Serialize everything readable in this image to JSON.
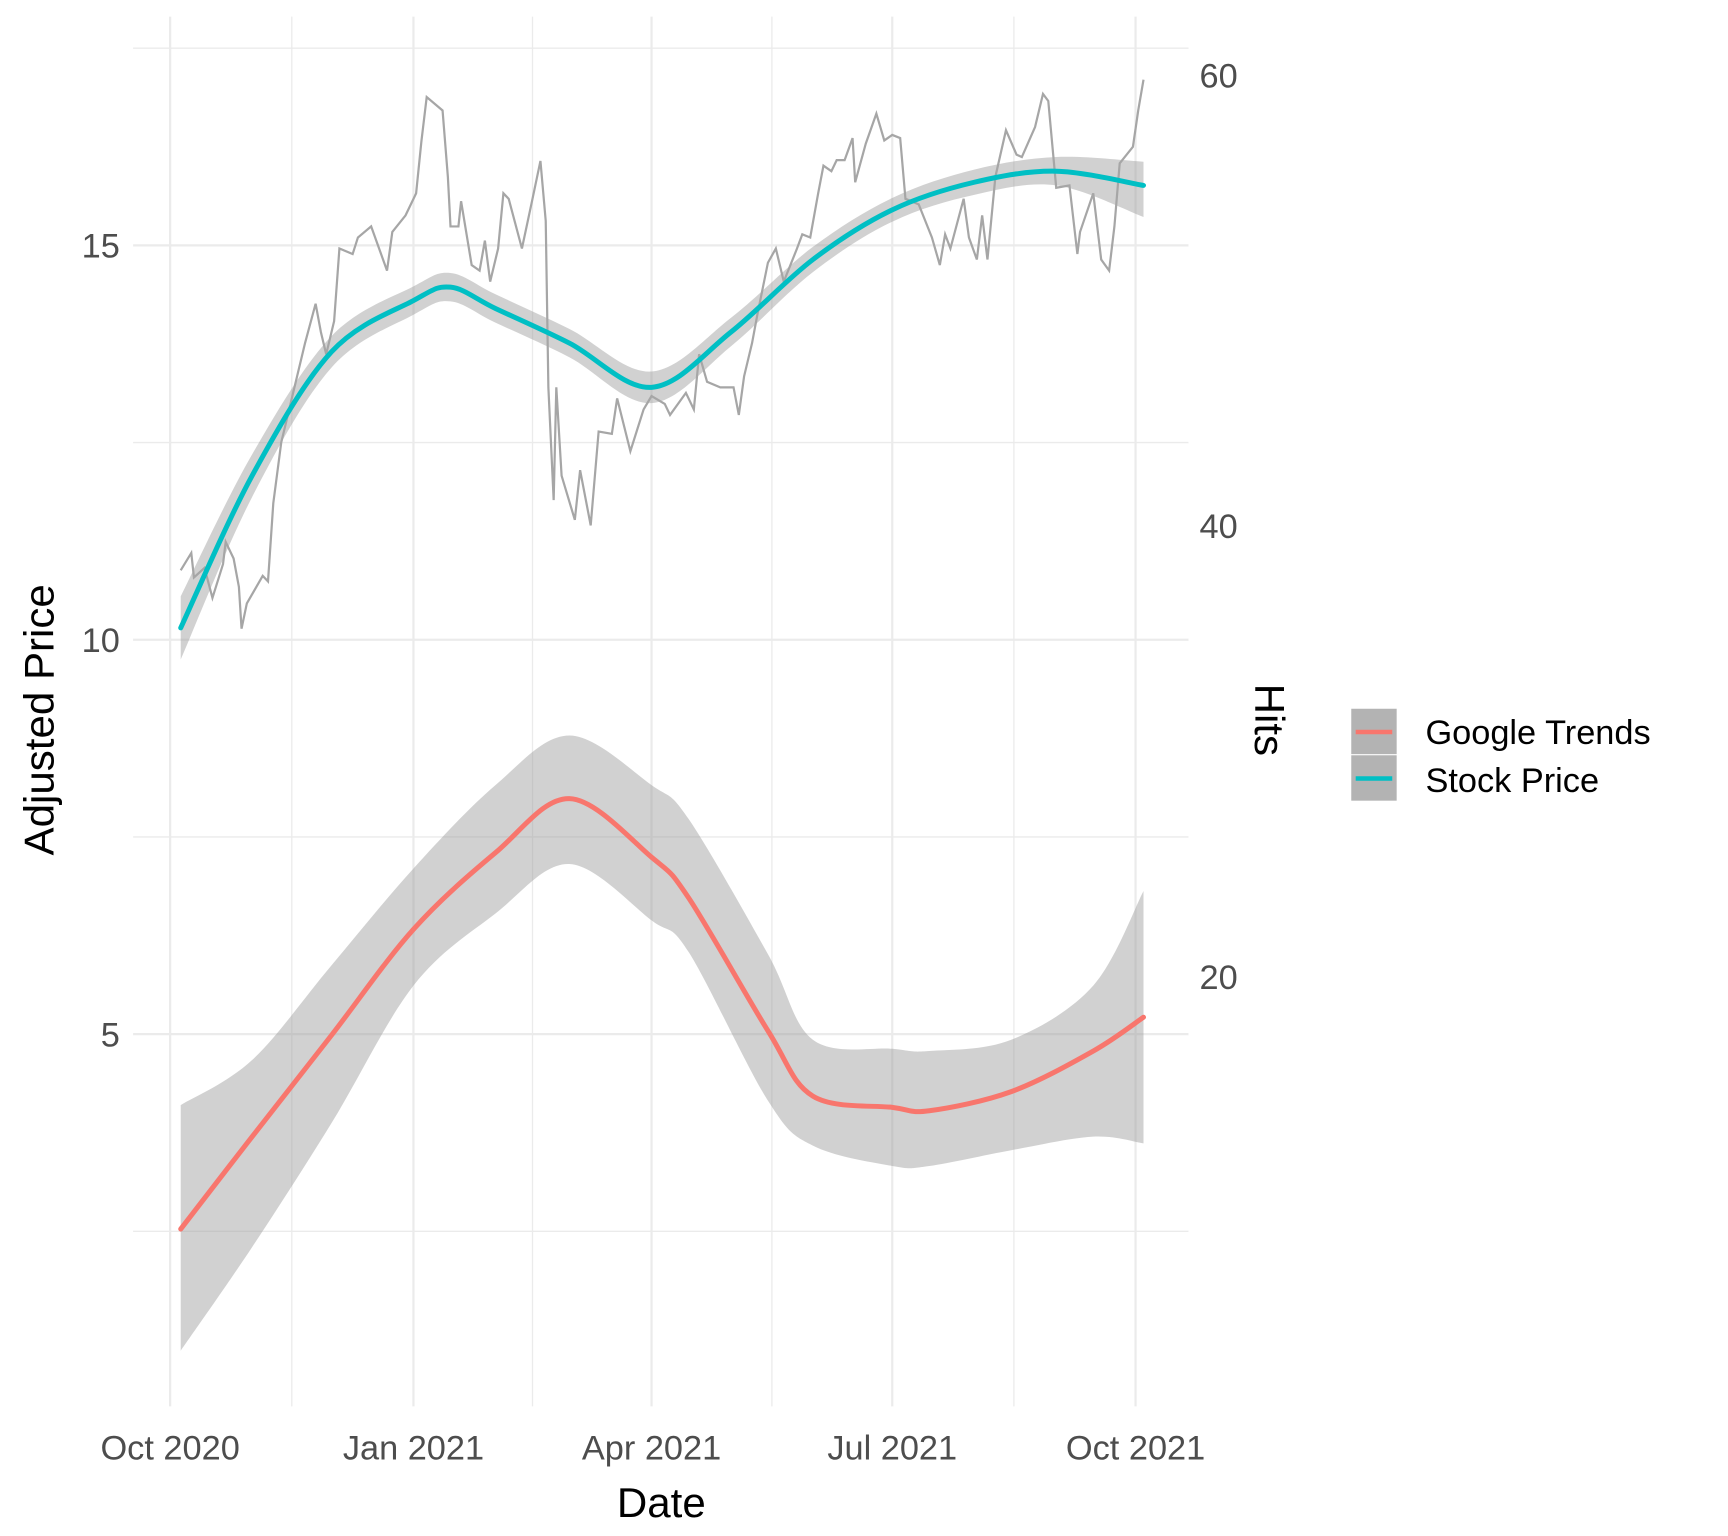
{
  "chart_data": {
    "type": "line",
    "xlabel": "Date",
    "ylabel": "Adjusted Price",
    "ylabel_right": "Hits",
    "x_ticks": [
      {
        "date": "2020-10-01",
        "label": "Oct 2020"
      },
      {
        "date": "2021-01-01",
        "label": "Jan 2021"
      },
      {
        "date": "2021-04-01",
        "label": "Apr 2021"
      },
      {
        "date": "2021-07-01",
        "label": "Jul 2021"
      },
      {
        "date": "2021-10-01",
        "label": "Oct 2021"
      }
    ],
    "y_ticks_left": [
      5,
      10,
      15
    ],
    "y_ticks_right": [
      20,
      40,
      60
    ],
    "ylim_left": [
      0.28,
      17.9
    ],
    "ylim_right": [
      0.93,
      62.6
    ],
    "xlim": [
      "2020-09-17",
      "2021-10-21"
    ],
    "grid": true,
    "legend_position": "right",
    "legend": [
      {
        "label": "Google Trends",
        "color": "#F8766D"
      },
      {
        "label": "Stock Price",
        "color": "#00BFC4"
      }
    ],
    "raw_price": {
      "axis": "left",
      "color": "#a6a6a6",
      "points": [
        [
          "2020-10-05",
          10.88
        ],
        [
          "2020-10-09",
          11.1
        ],
        [
          "2020-10-10",
          10.79
        ],
        [
          "2020-10-14",
          10.91
        ],
        [
          "2020-10-17",
          10.53
        ],
        [
          "2020-10-21",
          10.96
        ],
        [
          "2020-10-22",
          11.24
        ],
        [
          "2020-10-25",
          11.03
        ],
        [
          "2020-10-27",
          10.67
        ],
        [
          "2020-10-28",
          10.14
        ],
        [
          "2020-10-30",
          10.46
        ],
        [
          "2020-11-05",
          10.81
        ],
        [
          "2020-11-07",
          10.74
        ],
        [
          "2020-11-09",
          11.73
        ],
        [
          "2020-11-12",
          12.5
        ],
        [
          "2020-11-17",
          13.2
        ],
        [
          "2020-11-21",
          13.76
        ],
        [
          "2020-11-25",
          14.26
        ],
        [
          "2020-11-27",
          13.9
        ],
        [
          "2020-11-29",
          13.62
        ],
        [
          "2020-12-02",
          14.04
        ],
        [
          "2020-12-04",
          14.96
        ],
        [
          "2020-12-09",
          14.89
        ],
        [
          "2020-12-11",
          15.1
        ],
        [
          "2020-12-16",
          15.24
        ],
        [
          "2020-12-19",
          14.96
        ],
        [
          "2020-12-22",
          14.68
        ],
        [
          "2020-12-24",
          15.17
        ],
        [
          "2020-12-29",
          15.38
        ],
        [
          "2021-01-02",
          15.66
        ],
        [
          "2021-01-04",
          16.32
        ],
        [
          "2021-01-06",
          16.88
        ],
        [
          "2021-01-12",
          16.71
        ],
        [
          "2021-01-14",
          15.87
        ],
        [
          "2021-01-15",
          15.24
        ],
        [
          "2021-01-18",
          15.24
        ],
        [
          "2021-01-19",
          15.56
        ],
        [
          "2021-01-23",
          14.75
        ],
        [
          "2021-01-26",
          14.68
        ],
        [
          "2021-01-28",
          15.06
        ],
        [
          "2021-01-30",
          14.54
        ],
        [
          "2021-02-02",
          14.96
        ],
        [
          "2021-02-04",
          15.66
        ],
        [
          "2021-02-06",
          15.59
        ],
        [
          "2021-02-11",
          14.96
        ],
        [
          "2021-02-15",
          15.59
        ],
        [
          "2021-02-18",
          16.07
        ],
        [
          "2021-02-20",
          15.31
        ],
        [
          "2021-02-21",
          13.2
        ],
        [
          "2021-02-23",
          11.77
        ],
        [
          "2021-02-24",
          13.2
        ],
        [
          "2021-02-26",
          12.08
        ],
        [
          "2021-03-03",
          11.52
        ],
        [
          "2021-03-05",
          12.15
        ],
        [
          "2021-03-09",
          11.45
        ],
        [
          "2021-03-12",
          12.64
        ],
        [
          "2021-03-17",
          12.61
        ],
        [
          "2021-03-19",
          13.06
        ],
        [
          "2021-03-24",
          12.39
        ],
        [
          "2021-03-29",
          12.92
        ],
        [
          "2021-04-01",
          13.09
        ],
        [
          "2021-04-06",
          12.99
        ],
        [
          "2021-04-08",
          12.85
        ],
        [
          "2021-04-14",
          13.13
        ],
        [
          "2021-04-17",
          12.92
        ],
        [
          "2021-04-19",
          13.62
        ],
        [
          "2021-04-22",
          13.27
        ],
        [
          "2021-04-27",
          13.2
        ],
        [
          "2021-05-02",
          13.2
        ],
        [
          "2021-05-04",
          12.85
        ],
        [
          "2021-05-06",
          13.34
        ],
        [
          "2021-05-09",
          13.76
        ],
        [
          "2021-05-11",
          14.12
        ],
        [
          "2021-05-15",
          14.78
        ],
        [
          "2021-05-18",
          14.96
        ],
        [
          "2021-05-21",
          14.54
        ],
        [
          "2021-05-26",
          14.96
        ],
        [
          "2021-05-28",
          15.14
        ],
        [
          "2021-05-31",
          15.1
        ],
        [
          "2021-06-03",
          15.66
        ],
        [
          "2021-06-05",
          16.01
        ],
        [
          "2021-06-08",
          15.94
        ],
        [
          "2021-06-10",
          16.08
        ],
        [
          "2021-06-13",
          16.08
        ],
        [
          "2021-06-16",
          16.36
        ],
        [
          "2021-06-17",
          15.8
        ],
        [
          "2021-06-21",
          16.29
        ],
        [
          "2021-06-25",
          16.67
        ],
        [
          "2021-06-28",
          16.33
        ],
        [
          "2021-07-01",
          16.4
        ],
        [
          "2021-07-04",
          16.36
        ],
        [
          "2021-07-06",
          15.59
        ],
        [
          "2021-07-11",
          15.52
        ],
        [
          "2021-07-16",
          15.1
        ],
        [
          "2021-07-19",
          14.75
        ],
        [
          "2021-07-21",
          15.14
        ],
        [
          "2021-07-23",
          14.96
        ],
        [
          "2021-07-28",
          15.59
        ],
        [
          "2021-07-30",
          15.1
        ],
        [
          "2021-08-02",
          14.82
        ],
        [
          "2021-08-04",
          15.38
        ],
        [
          "2021-08-06",
          14.82
        ],
        [
          "2021-08-09",
          15.87
        ],
        [
          "2021-08-13",
          16.46
        ],
        [
          "2021-08-17",
          16.15
        ],
        [
          "2021-08-19",
          16.12
        ],
        [
          "2021-08-24",
          16.5
        ],
        [
          "2021-08-27",
          16.92
        ],
        [
          "2021-08-29",
          16.83
        ],
        [
          "2021-09-01",
          15.73
        ],
        [
          "2021-09-06",
          15.76
        ],
        [
          "2021-09-09",
          14.89
        ],
        [
          "2021-09-10",
          15.17
        ],
        [
          "2021-09-15",
          15.66
        ],
        [
          "2021-09-18",
          14.82
        ],
        [
          "2021-09-21",
          14.68
        ],
        [
          "2021-09-23",
          15.24
        ],
        [
          "2021-09-25",
          16.04
        ],
        [
          "2021-09-30",
          16.25
        ],
        [
          "2021-10-02",
          16.71
        ],
        [
          "2021-10-04",
          17.1
        ]
      ]
    },
    "series": [
      {
        "name": "Stock Price",
        "axis": "left",
        "color": "#00BFC4",
        "points": [
          [
            "2020-10-05",
            10.15
          ],
          [
            "2020-11-01",
            12.08
          ],
          [
            "2020-12-01",
            13.65
          ],
          [
            "2021-01-01",
            14.3
          ],
          [
            "2021-01-15",
            14.47
          ],
          [
            "2021-02-01",
            14.2
          ],
          [
            "2021-03-01",
            13.76
          ],
          [
            "2021-04-01",
            13.2
          ],
          [
            "2021-05-01",
            13.9
          ],
          [
            "2021-06-01",
            14.82
          ],
          [
            "2021-07-01",
            15.45
          ],
          [
            "2021-08-01",
            15.8
          ],
          [
            "2021-09-01",
            15.94
          ],
          [
            "2021-10-04",
            15.76
          ]
        ],
        "band": [
          [
            10.55,
            9.75
          ],
          [
            12.35,
            11.81
          ],
          [
            13.85,
            13.45
          ],
          [
            14.48,
            14.12
          ],
          [
            14.65,
            14.29
          ],
          [
            14.38,
            14.02
          ],
          [
            13.94,
            13.58
          ],
          [
            13.4,
            13.0
          ],
          [
            14.08,
            13.72
          ],
          [
            14.98,
            14.66
          ],
          [
            15.6,
            15.3
          ],
          [
            15.96,
            15.64
          ],
          [
            16.12,
            15.76
          ],
          [
            16.06,
            15.36
          ]
        ]
      },
      {
        "name": "Google Trends",
        "axis": "right",
        "color": "#F8766D",
        "points": [
          [
            "2020-10-05",
            8.8
          ],
          [
            "2020-11-01",
            12.9
          ],
          [
            "2020-12-01",
            17.4
          ],
          [
            "2021-01-01",
            22.1
          ],
          [
            "2021-02-01",
            25.5
          ],
          [
            "2021-03-01",
            27.9
          ],
          [
            "2021-04-01",
            25.3
          ],
          [
            "2021-04-15",
            23.5
          ],
          [
            "2021-05-15",
            17.6
          ],
          [
            "2021-06-01",
            14.7
          ],
          [
            "2021-07-01",
            14.2
          ],
          [
            "2021-07-15",
            14.05
          ],
          [
            "2021-08-15",
            14.9
          ],
          [
            "2021-09-15",
            16.7
          ],
          [
            "2021-10-04",
            18.2
          ]
        ],
        "band": [
          [
            14.3,
            3.4
          ],
          [
            16.3,
            8.0
          ],
          [
            20.5,
            13.5
          ],
          [
            24.8,
            19.6
          ],
          [
            28.5,
            22.8
          ],
          [
            30.7,
            25.0
          ],
          [
            28.5,
            22.5
          ],
          [
            27.0,
            21.1
          ],
          [
            21.0,
            14.5
          ],
          [
            17.2,
            12.5
          ],
          [
            16.8,
            11.6
          ],
          [
            16.7,
            11.6
          ],
          [
            17.2,
            12.3
          ],
          [
            19.6,
            12.9
          ],
          [
            23.8,
            12.6
          ]
        ]
      }
    ]
  }
}
